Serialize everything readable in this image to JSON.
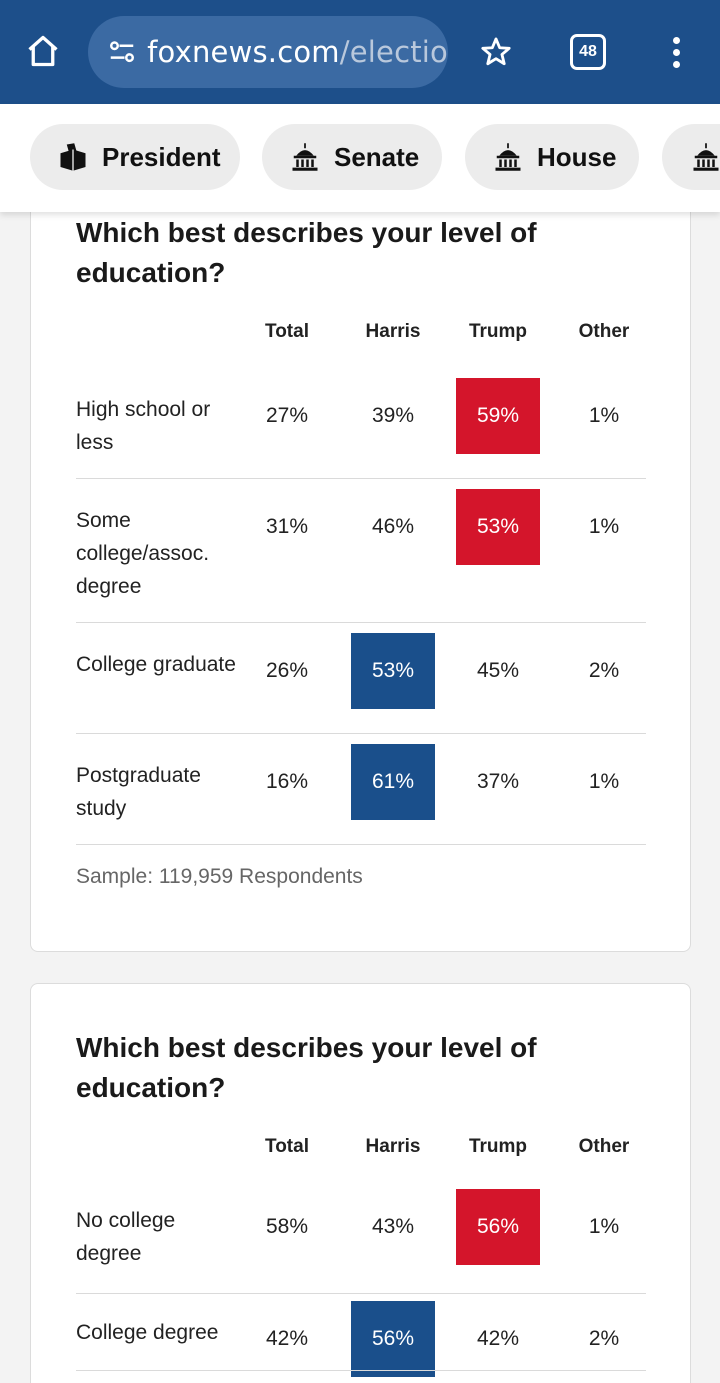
{
  "browser": {
    "url_domain": "foxnews.com",
    "url_path": "/electio",
    "tab_count": "48"
  },
  "nav": {
    "chips": [
      {
        "label": "President",
        "icon": "ballot-box-icon"
      },
      {
        "label": "Senate",
        "icon": "capitol-icon"
      },
      {
        "label": "House",
        "icon": "capitol-icon"
      },
      {
        "label": "",
        "icon": "capitol-icon"
      }
    ]
  },
  "columns": [
    "Total",
    "Harris",
    "Trump",
    "Other"
  ],
  "cards": [
    {
      "title": "Which best describes your level of education?",
      "rows": [
        {
          "label": "High school or less",
          "total": "27%",
          "harris": "39%",
          "trump": "59%",
          "other": "1%",
          "winner": "trump"
        },
        {
          "label": "Some college/assoc. degree",
          "total": "31%",
          "harris": "46%",
          "trump": "53%",
          "other": "1%",
          "winner": "trump"
        },
        {
          "label": "College graduate",
          "total": "26%",
          "harris": "53%",
          "trump": "45%",
          "other": "2%",
          "winner": "harris"
        },
        {
          "label": "Postgraduate study",
          "total": "16%",
          "harris": "61%",
          "trump": "37%",
          "other": "1%",
          "winner": "harris"
        }
      ],
      "sample": "Sample: 119,959 Respondents"
    },
    {
      "title": "Which best describes your level of education?",
      "rows": [
        {
          "label": "No college degree",
          "total": "58%",
          "harris": "43%",
          "trump": "56%",
          "other": "1%",
          "winner": "trump"
        },
        {
          "label": "College degree",
          "total": "42%",
          "harris": "56%",
          "trump": "42%",
          "other": "2%",
          "winner": "harris"
        }
      ]
    }
  ],
  "colors": {
    "browser_bar": "#1d4f8a",
    "trump_red": "#d4152b",
    "harris_blue": "#1a4f8b"
  }
}
